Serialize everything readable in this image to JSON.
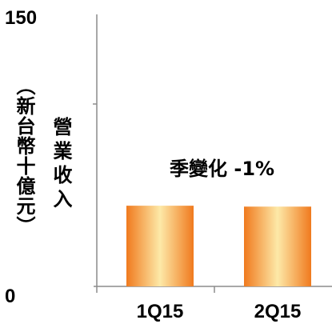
{
  "chart_data": {
    "type": "bar",
    "categories": [
      "1Q15",
      "2Q15"
    ],
    "values": [
      44.5,
      44
    ],
    "ylim": [
      0,
      150
    ],
    "yticks": [
      "0",
      "150"
    ],
    "ylabel_lines": [
      "營業收入",
      "（新台幣十億元）"
    ],
    "annotation": "季變化 -1%",
    "grid": false,
    "legend": "none",
    "colors": {
      "bar_edge": "#f07a1e",
      "bar_center": "#fde9a8",
      "axis": "#8c8c8c"
    }
  }
}
